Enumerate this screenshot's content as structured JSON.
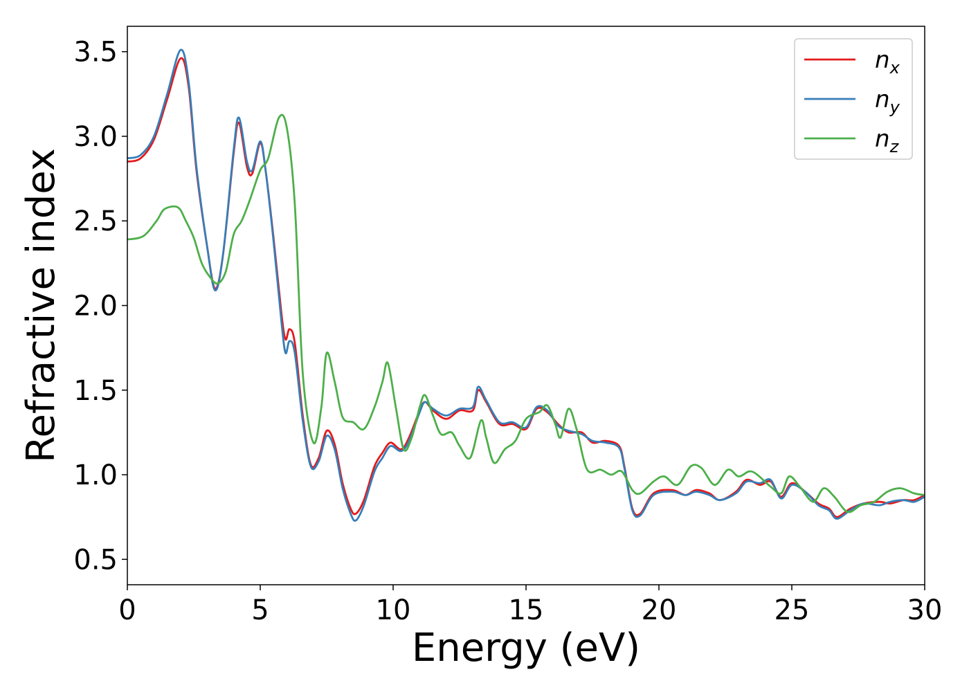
{
  "chart_data": {
    "type": "line",
    "title": "",
    "xlabel": "Energy (eV)",
    "ylabel": "Refractive index",
    "xlim": [
      0,
      30
    ],
    "ylim": [
      0.35,
      3.65
    ],
    "xticks": [
      0,
      5,
      10,
      15,
      20,
      25,
      30
    ],
    "yticks": [
      0.5,
      1.0,
      1.5,
      2.0,
      2.5,
      3.0,
      3.5
    ],
    "grid": false,
    "legend_position": "top-right",
    "series": [
      {
        "name": "n_x",
        "label_base": "n",
        "label_sub": "x",
        "color": "#e41a1c",
        "points": [
          [
            0,
            2.85
          ],
          [
            0.5,
            2.87
          ],
          [
            1.0,
            2.98
          ],
          [
            1.5,
            3.22
          ],
          [
            2.0,
            3.46
          ],
          [
            2.3,
            3.3
          ],
          [
            2.6,
            2.8
          ],
          [
            3.0,
            2.35
          ],
          [
            3.3,
            2.1
          ],
          [
            3.6,
            2.3
          ],
          [
            4.0,
            2.9
          ],
          [
            4.2,
            3.08
          ],
          [
            4.5,
            2.82
          ],
          [
            4.7,
            2.78
          ],
          [
            5.0,
            2.96
          ],
          [
            5.2,
            2.8
          ],
          [
            5.5,
            2.4
          ],
          [
            5.8,
            1.95
          ],
          [
            5.95,
            1.8
          ],
          [
            6.1,
            1.86
          ],
          [
            6.3,
            1.78
          ],
          [
            6.6,
            1.35
          ],
          [
            6.9,
            1.06
          ],
          [
            7.2,
            1.1
          ],
          [
            7.5,
            1.26
          ],
          [
            7.8,
            1.18
          ],
          [
            8.1,
            0.95
          ],
          [
            8.4,
            0.8
          ],
          [
            8.6,
            0.77
          ],
          [
            8.9,
            0.85
          ],
          [
            9.3,
            1.05
          ],
          [
            9.6,
            1.13
          ],
          [
            9.9,
            1.19
          ],
          [
            10.3,
            1.15
          ],
          [
            10.6,
            1.22
          ],
          [
            11.0,
            1.38
          ],
          [
            11.2,
            1.43
          ],
          [
            11.5,
            1.38
          ],
          [
            12.0,
            1.33
          ],
          [
            12.5,
            1.38
          ],
          [
            13.0,
            1.38
          ],
          [
            13.2,
            1.5
          ],
          [
            13.5,
            1.43
          ],
          [
            14.0,
            1.3
          ],
          [
            14.5,
            1.3
          ],
          [
            15.0,
            1.27
          ],
          [
            15.4,
            1.39
          ],
          [
            15.8,
            1.37
          ],
          [
            16.2,
            1.3
          ],
          [
            16.6,
            1.25
          ],
          [
            17.1,
            1.25
          ],
          [
            17.5,
            1.19
          ],
          [
            18.0,
            1.2
          ],
          [
            18.5,
            1.17
          ],
          [
            18.7,
            1.05
          ],
          [
            19.0,
            0.8
          ],
          [
            19.3,
            0.77
          ],
          [
            19.8,
            0.89
          ],
          [
            20.5,
            0.91
          ],
          [
            21.0,
            0.88
          ],
          [
            21.4,
            0.91
          ],
          [
            21.9,
            0.89
          ],
          [
            22.3,
            0.85
          ],
          [
            22.9,
            0.9
          ],
          [
            23.3,
            0.97
          ],
          [
            23.8,
            0.94
          ],
          [
            24.2,
            0.96
          ],
          [
            24.6,
            0.87
          ],
          [
            25.0,
            0.95
          ],
          [
            25.5,
            0.9
          ],
          [
            26.0,
            0.83
          ],
          [
            26.4,
            0.8
          ],
          [
            26.7,
            0.75
          ],
          [
            27.2,
            0.8
          ],
          [
            27.7,
            0.83
          ],
          [
            28.3,
            0.84
          ],
          [
            28.7,
            0.83
          ],
          [
            29.2,
            0.85
          ],
          [
            29.6,
            0.85
          ],
          [
            30.0,
            0.88
          ]
        ]
      },
      {
        "name": "n_y",
        "label_base": "n",
        "label_sub": "y",
        "color": "#377eb8",
        "points": [
          [
            0,
            2.87
          ],
          [
            0.5,
            2.89
          ],
          [
            1.0,
            3.0
          ],
          [
            1.5,
            3.25
          ],
          [
            2.0,
            3.51
          ],
          [
            2.3,
            3.33
          ],
          [
            2.6,
            2.82
          ],
          [
            3.0,
            2.35
          ],
          [
            3.3,
            2.09
          ],
          [
            3.6,
            2.3
          ],
          [
            4.0,
            2.92
          ],
          [
            4.2,
            3.11
          ],
          [
            4.5,
            2.85
          ],
          [
            4.7,
            2.8
          ],
          [
            5.0,
            2.97
          ],
          [
            5.2,
            2.8
          ],
          [
            5.5,
            2.38
          ],
          [
            5.8,
            1.9
          ],
          [
            5.95,
            1.72
          ],
          [
            6.1,
            1.79
          ],
          [
            6.3,
            1.72
          ],
          [
            6.6,
            1.32
          ],
          [
            6.9,
            1.05
          ],
          [
            7.2,
            1.08
          ],
          [
            7.5,
            1.23
          ],
          [
            7.8,
            1.15
          ],
          [
            8.1,
            0.92
          ],
          [
            8.4,
            0.77
          ],
          [
            8.6,
            0.73
          ],
          [
            8.9,
            0.82
          ],
          [
            9.3,
            1.02
          ],
          [
            9.6,
            1.1
          ],
          [
            9.9,
            1.17
          ],
          [
            10.3,
            1.14
          ],
          [
            10.6,
            1.2
          ],
          [
            11.0,
            1.37
          ],
          [
            11.2,
            1.43
          ],
          [
            11.5,
            1.39
          ],
          [
            12.0,
            1.35
          ],
          [
            12.5,
            1.39
          ],
          [
            13.0,
            1.4
          ],
          [
            13.2,
            1.52
          ],
          [
            13.5,
            1.44
          ],
          [
            14.0,
            1.31
          ],
          [
            14.5,
            1.31
          ],
          [
            15.0,
            1.28
          ],
          [
            15.4,
            1.4
          ],
          [
            15.8,
            1.38
          ],
          [
            16.2,
            1.29
          ],
          [
            16.6,
            1.26
          ],
          [
            17.1,
            1.24
          ],
          [
            17.5,
            1.2
          ],
          [
            18.0,
            1.19
          ],
          [
            18.5,
            1.16
          ],
          [
            18.7,
            1.04
          ],
          [
            19.0,
            0.79
          ],
          [
            19.3,
            0.76
          ],
          [
            19.8,
            0.88
          ],
          [
            20.5,
            0.9
          ],
          [
            21.0,
            0.88
          ],
          [
            21.4,
            0.9
          ],
          [
            21.9,
            0.88
          ],
          [
            22.3,
            0.85
          ],
          [
            22.9,
            0.89
          ],
          [
            23.3,
            0.96
          ],
          [
            23.8,
            0.95
          ],
          [
            24.2,
            0.97
          ],
          [
            24.6,
            0.86
          ],
          [
            25.0,
            0.94
          ],
          [
            25.5,
            0.9
          ],
          [
            26.0,
            0.82
          ],
          [
            26.4,
            0.79
          ],
          [
            26.7,
            0.74
          ],
          [
            27.2,
            0.79
          ],
          [
            27.7,
            0.83
          ],
          [
            28.3,
            0.82
          ],
          [
            28.7,
            0.84
          ],
          [
            29.2,
            0.85
          ],
          [
            29.6,
            0.84
          ],
          [
            30.0,
            0.87
          ]
        ]
      },
      {
        "name": "n_z",
        "label_base": "n",
        "label_sub": "z",
        "color": "#4daf4a",
        "points": [
          [
            0,
            2.39
          ],
          [
            0.6,
            2.41
          ],
          [
            1.1,
            2.5
          ],
          [
            1.4,
            2.57
          ],
          [
            1.9,
            2.58
          ],
          [
            2.2,
            2.5
          ],
          [
            2.5,
            2.4
          ],
          [
            2.8,
            2.25
          ],
          [
            3.1,
            2.17
          ],
          [
            3.4,
            2.13
          ],
          [
            3.7,
            2.2
          ],
          [
            4.0,
            2.42
          ],
          [
            4.3,
            2.5
          ],
          [
            4.6,
            2.62
          ],
          [
            5.0,
            2.8
          ],
          [
            5.3,
            2.87
          ],
          [
            5.7,
            3.11
          ],
          [
            6.0,
            3.05
          ],
          [
            6.3,
            2.6
          ],
          [
            6.6,
            1.6
          ],
          [
            7.0,
            1.19
          ],
          [
            7.3,
            1.4
          ],
          [
            7.5,
            1.72
          ],
          [
            7.8,
            1.55
          ],
          [
            8.1,
            1.34
          ],
          [
            8.5,
            1.31
          ],
          [
            8.9,
            1.27
          ],
          [
            9.3,
            1.4
          ],
          [
            9.6,
            1.55
          ],
          [
            9.8,
            1.66
          ],
          [
            10.1,
            1.4
          ],
          [
            10.4,
            1.15
          ],
          [
            10.7,
            1.22
          ],
          [
            11.0,
            1.4
          ],
          [
            11.2,
            1.47
          ],
          [
            11.5,
            1.35
          ],
          [
            11.8,
            1.24
          ],
          [
            12.2,
            1.25
          ],
          [
            12.5,
            1.17
          ],
          [
            12.9,
            1.1
          ],
          [
            13.3,
            1.32
          ],
          [
            13.5,
            1.22
          ],
          [
            13.8,
            1.07
          ],
          [
            14.2,
            1.15
          ],
          [
            14.6,
            1.2
          ],
          [
            15.0,
            1.33
          ],
          [
            15.5,
            1.37
          ],
          [
            15.8,
            1.41
          ],
          [
            16.1,
            1.3
          ],
          [
            16.3,
            1.22
          ],
          [
            16.6,
            1.39
          ],
          [
            16.9,
            1.27
          ],
          [
            17.3,
            1.03
          ],
          [
            17.8,
            1.03
          ],
          [
            18.2,
            1.0
          ],
          [
            18.6,
            1.02
          ],
          [
            19.0,
            0.91
          ],
          [
            19.3,
            0.89
          ],
          [
            19.8,
            0.96
          ],
          [
            20.2,
            0.99
          ],
          [
            20.7,
            0.94
          ],
          [
            21.2,
            1.05
          ],
          [
            21.6,
            1.04
          ],
          [
            22.1,
            0.94
          ],
          [
            22.6,
            1.03
          ],
          [
            23.0,
            0.99
          ],
          [
            23.4,
            1.02
          ],
          [
            23.7,
            1.0
          ],
          [
            24.2,
            0.93
          ],
          [
            24.6,
            0.89
          ],
          [
            24.9,
            0.99
          ],
          [
            25.3,
            0.93
          ],
          [
            25.8,
            0.84
          ],
          [
            26.2,
            0.92
          ],
          [
            26.6,
            0.87
          ],
          [
            27.1,
            0.78
          ],
          [
            27.6,
            0.82
          ],
          [
            28.1,
            0.84
          ],
          [
            28.6,
            0.9
          ],
          [
            29.1,
            0.92
          ],
          [
            29.6,
            0.89
          ],
          [
            30.0,
            0.88
          ]
        ]
      }
    ]
  }
}
